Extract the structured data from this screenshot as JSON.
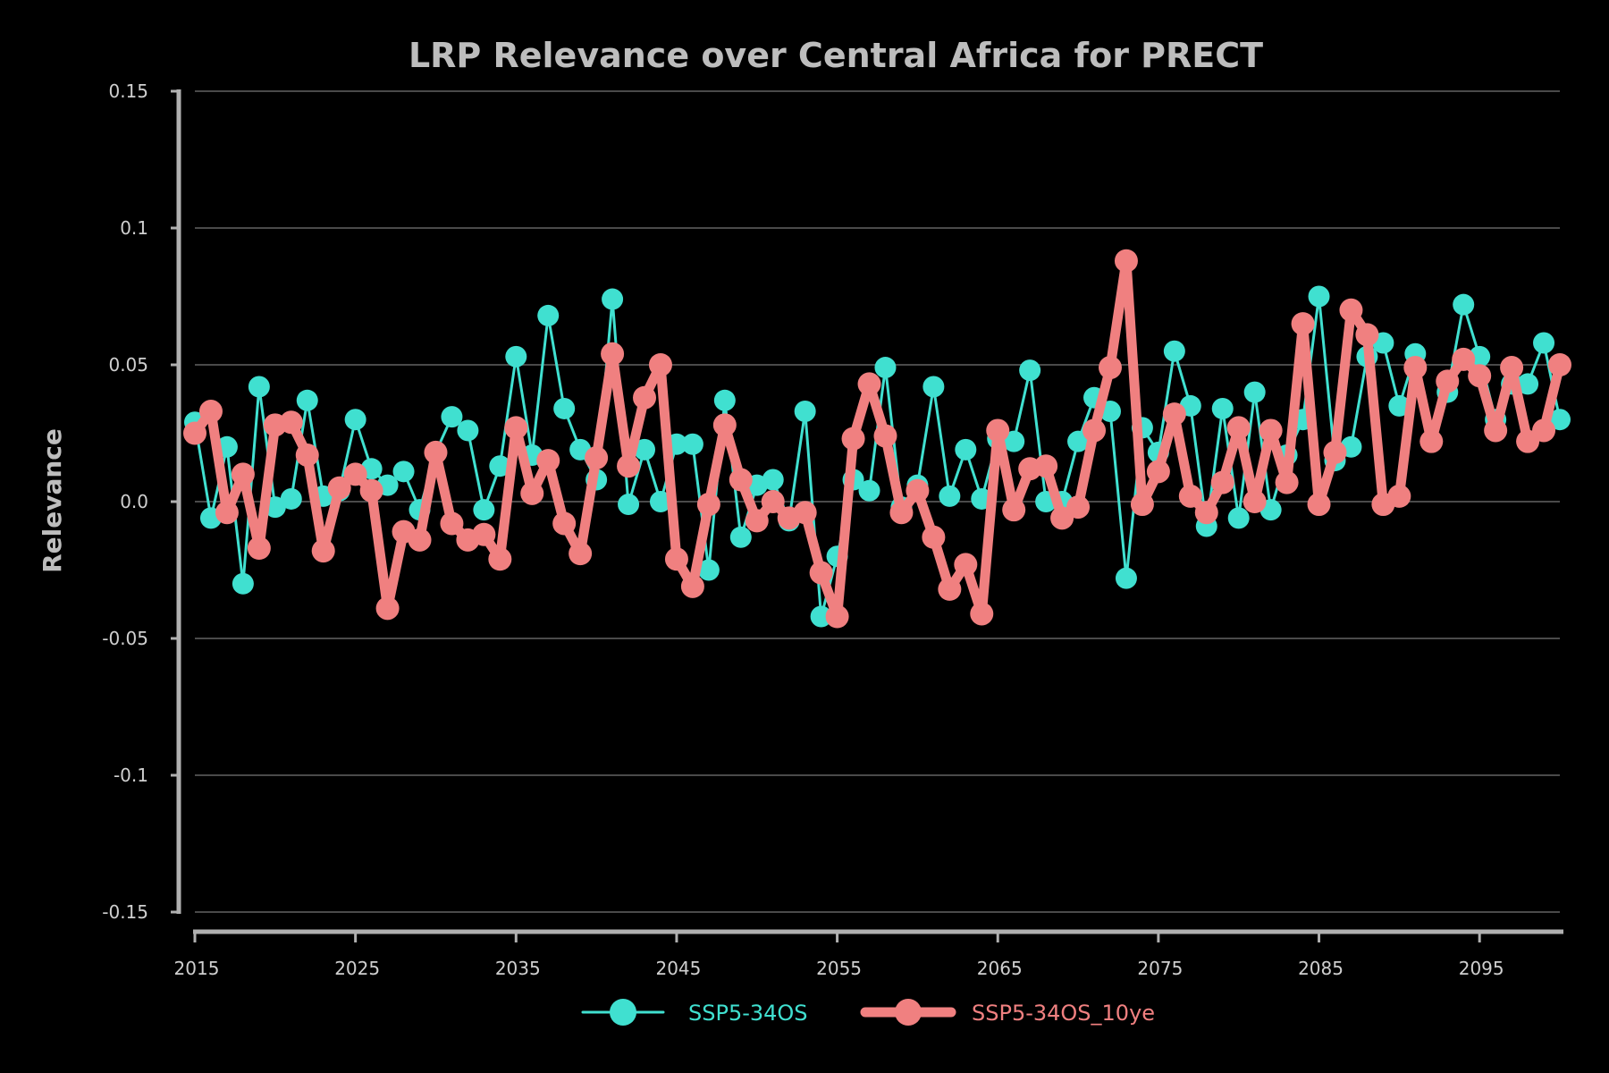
{
  "chart_data": {
    "type": "line",
    "title": "LRP Relevance over Central Africa for PRECT",
    "xlabel": "",
    "ylabel": "Relevance",
    "xlim": [
      2015,
      2100
    ],
    "ylim": [
      -0.15,
      0.15
    ],
    "x_ticks": [
      "2015",
      "2025",
      "2035",
      "2045",
      "2055",
      "2065",
      "2075",
      "2085",
      "2095"
    ],
    "y_ticks": [
      {
        "value": 0.15,
        "label": "0.15"
      },
      {
        "value": 0.1,
        "label": "0.1"
      },
      {
        "value": 0.05,
        "label": "0.05"
      },
      {
        "value": 0.0,
        "label": "0.0"
      },
      {
        "value": -0.05,
        "label": "-0.05"
      },
      {
        "value": -0.1,
        "label": "-0.1"
      },
      {
        "value": -0.15,
        "label": "-0.15"
      }
    ],
    "grid": true,
    "legend_position": "bottom-center",
    "x": [
      2015,
      2016,
      2017,
      2018,
      2019,
      2020,
      2021,
      2022,
      2023,
      2024,
      2025,
      2026,
      2027,
      2028,
      2029,
      2030,
      2031,
      2032,
      2033,
      2034,
      2035,
      2036,
      2037,
      2038,
      2039,
      2040,
      2041,
      2042,
      2043,
      2044,
      2045,
      2046,
      2047,
      2048,
      2049,
      2050,
      2051,
      2052,
      2053,
      2054,
      2055,
      2056,
      2057,
      2058,
      2059,
      2060,
      2061,
      2062,
      2063,
      2064,
      2065,
      2066,
      2067,
      2068,
      2069,
      2070,
      2071,
      2072,
      2073,
      2074,
      2075,
      2076,
      2077,
      2078,
      2079,
      2080,
      2081,
      2082,
      2083,
      2084,
      2085,
      2086,
      2087,
      2088,
      2089,
      2090,
      2091,
      2092,
      2093,
      2094,
      2095,
      2096,
      2097,
      2098,
      2099,
      2100
    ],
    "series": [
      {
        "name": "SSP5-34OS",
        "color": "#40e0d0",
        "values": [
          0.029,
          -0.006,
          0.02,
          -0.03,
          0.042,
          -0.002,
          0.001,
          0.037,
          0.002,
          0.004,
          0.03,
          0.012,
          0.006,
          0.011,
          -0.003,
          0.018,
          0.031,
          0.026,
          -0.003,
          0.013,
          0.053,
          0.017,
          0.068,
          0.034,
          0.019,
          0.008,
          0.074,
          -0.001,
          0.019,
          0.0,
          0.021,
          0.021,
          -0.025,
          0.037,
          -0.013,
          0.006,
          0.008,
          -0.007,
          0.033,
          -0.042,
          -0.02,
          0.008,
          0.004,
          0.049,
          -0.002,
          0.006,
          0.042,
          0.002,
          0.019,
          0.001,
          0.023,
          0.022,
          0.048,
          0.0,
          0.0,
          0.022,
          0.038,
          0.033,
          -0.028,
          0.027,
          0.018,
          0.055,
          0.035,
          -0.009,
          0.034,
          -0.006,
          0.04,
          -0.003,
          0.017,
          0.03,
          0.075,
          0.015,
          0.02,
          0.053,
          0.058,
          0.035,
          0.054,
          0.022,
          0.04,
          0.072,
          0.053,
          0.03,
          0.043,
          0.043,
          0.058,
          0.03
        ]
      },
      {
        "name": "SSP5-34OS_10ye",
        "color": "#f08080",
        "values": [
          0.025,
          0.033,
          -0.004,
          0.01,
          -0.017,
          0.028,
          0.029,
          0.017,
          -0.018,
          0.005,
          0.01,
          0.004,
          -0.039,
          -0.011,
          -0.014,
          0.018,
          -0.008,
          -0.014,
          -0.012,
          -0.021,
          0.027,
          0.003,
          0.015,
          -0.008,
          -0.019,
          0.016,
          0.054,
          0.013,
          0.038,
          0.05,
          -0.021,
          -0.031,
          -0.001,
          0.028,
          0.008,
          -0.007,
          0.0,
          -0.006,
          -0.004,
          -0.026,
          -0.042,
          0.023,
          0.043,
          0.024,
          -0.004,
          0.004,
          -0.013,
          -0.032,
          -0.023,
          -0.041,
          0.026,
          -0.003,
          0.012,
          0.013,
          -0.006,
          -0.002,
          0.026,
          0.049,
          0.088,
          -0.001,
          0.011,
          0.032,
          0.002,
          -0.004,
          0.007,
          0.027,
          0.0,
          0.026,
          0.007,
          0.065,
          -0.001,
          0.018,
          0.07,
          0.061,
          -0.001,
          0.002,
          0.049,
          0.022,
          0.044,
          0.052,
          0.046,
          0.026,
          0.049,
          0.022,
          0.026,
          0.05
        ]
      }
    ]
  }
}
